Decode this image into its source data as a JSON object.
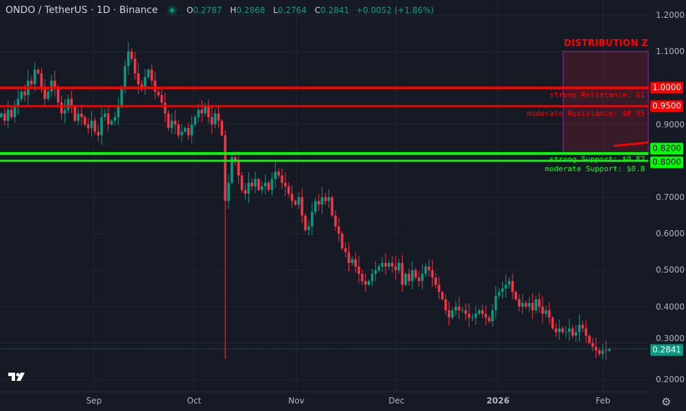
{
  "header": {
    "symbol": "ONDO / TetherUS · 1D · Binance",
    "market_status": "open",
    "open_label": "O",
    "open": "0.2787",
    "high_label": "H",
    "high": "0.2868",
    "low_label": "L",
    "low": "0.2764",
    "close_label": "C",
    "close": "0.2841",
    "change": "+0.0052 (+1.86%)"
  },
  "colors": {
    "up": "#089981",
    "down": "#f23645",
    "resistance": "#ff0000",
    "support": "#00ff00",
    "zone_border": "#9c27b0",
    "background": "#161a25"
  },
  "price_axis": [
    "1.2000",
    "1.1000",
    "1.0000",
    "0.9000",
    "0.8000",
    "0.7000",
    "0.6000",
    "0.5000",
    "0.4000",
    "0.3000",
    "0.2000"
  ],
  "time_axis": [
    "Sep",
    "Oct",
    "Nov",
    "Dec",
    "2026",
    "Feb"
  ],
  "levels": [
    {
      "price": 1.0,
      "badge": "1.0000",
      "label": "strong Resistance: $1",
      "type": "resistance"
    },
    {
      "price": 0.95,
      "badge": "0.9500",
      "label": "moderate Resistance: $0.95",
      "type": "resistance"
    },
    {
      "price": 0.82,
      "badge": "0.8200",
      "label": "strong Support: $0.82",
      "type": "support"
    },
    {
      "price": 0.8,
      "badge": "0.8000",
      "label": "moderate Support: $0.8",
      "type": "support"
    }
  ],
  "zone": {
    "label": "DISTRIBUTION ZONE",
    "top": 1.1,
    "bottom": 0.82
  },
  "last_price": "0.2841",
  "chart_data": {
    "type": "candlestick",
    "ylim": [
      0.2,
      1.2
    ],
    "first_open": 0.92,
    "closes": [
      0.93,
      0.91,
      0.94,
      0.92,
      0.95,
      0.97,
      0.99,
      0.98,
      1.02,
      1.01,
      1.05,
      1.04,
      1.0,
      0.97,
      0.99,
      1.02,
      1.0,
      0.96,
      0.93,
      0.94,
      0.97,
      0.95,
      0.91,
      0.93,
      0.92,
      0.9,
      0.89,
      0.91,
      0.88,
      0.87,
      0.92,
      0.93,
      0.9,
      0.91,
      0.92,
      0.95,
      1.0,
      1.06,
      1.1,
      1.08,
      1.04,
      1.01,
      1.0,
      1.03,
      1.05,
      1.02,
      0.99,
      0.98,
      0.96,
      0.93,
      0.89,
      0.91,
      0.9,
      0.87,
      0.88,
      0.89,
      0.87,
      0.9,
      0.92,
      0.94,
      0.93,
      0.95,
      0.92,
      0.9,
      0.93,
      0.91,
      0.87,
      0.69,
      0.74,
      0.81,
      0.8,
      0.76,
      0.72,
      0.71,
      0.74,
      0.73,
      0.75,
      0.72,
      0.73,
      0.74,
      0.72,
      0.75,
      0.77,
      0.76,
      0.74,
      0.73,
      0.71,
      0.69,
      0.68,
      0.7,
      0.65,
      0.61,
      0.62,
      0.66,
      0.69,
      0.68,
      0.7,
      0.69,
      0.7,
      0.65,
      0.62,
      0.6,
      0.56,
      0.55,
      0.52,
      0.53,
      0.51,
      0.49,
      0.47,
      0.46,
      0.47,
      0.49,
      0.5,
      0.51,
      0.52,
      0.51,
      0.52,
      0.51,
      0.5,
      0.52,
      0.46,
      0.49,
      0.47,
      0.5,
      0.48,
      0.47,
      0.49,
      0.51,
      0.5,
      0.48,
      0.46,
      0.44,
      0.42,
      0.39,
      0.37,
      0.39,
      0.4,
      0.39,
      0.39,
      0.38,
      0.37,
      0.37,
      0.38,
      0.39,
      0.38,
      0.37,
      0.36,
      0.39,
      0.43,
      0.44,
      0.45,
      0.46,
      0.47,
      0.44,
      0.42,
      0.4,
      0.41,
      0.4,
      0.41,
      0.39,
      0.42,
      0.4,
      0.38,
      0.39,
      0.37,
      0.34,
      0.33,
      0.34,
      0.33,
      0.33,
      0.34,
      0.32,
      0.33,
      0.35,
      0.34,
      0.32,
      0.3,
      0.29,
      0.28,
      0.27,
      0.28,
      0.2787,
      0.2841
    ],
    "crash_low": 0.256,
    "last_candle": {
      "o": 0.2787,
      "h": 0.2868,
      "l": 0.2764,
      "c": 0.2841
    }
  }
}
